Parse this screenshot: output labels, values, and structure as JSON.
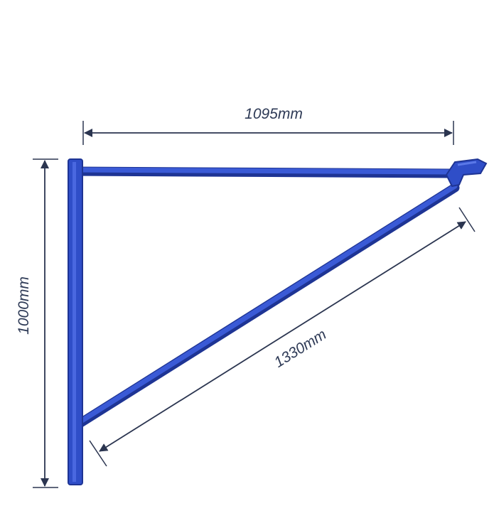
{
  "dimensions": {
    "horizontal_arm": "1095mm",
    "vertical_post": "1000mm",
    "diagonal_brace": "1330mm"
  },
  "colors": {
    "bracket": "#2f4ec8",
    "bracket_dark": "#1e3494",
    "dimension_line": "#2b3550",
    "text": "#2e3a56"
  }
}
